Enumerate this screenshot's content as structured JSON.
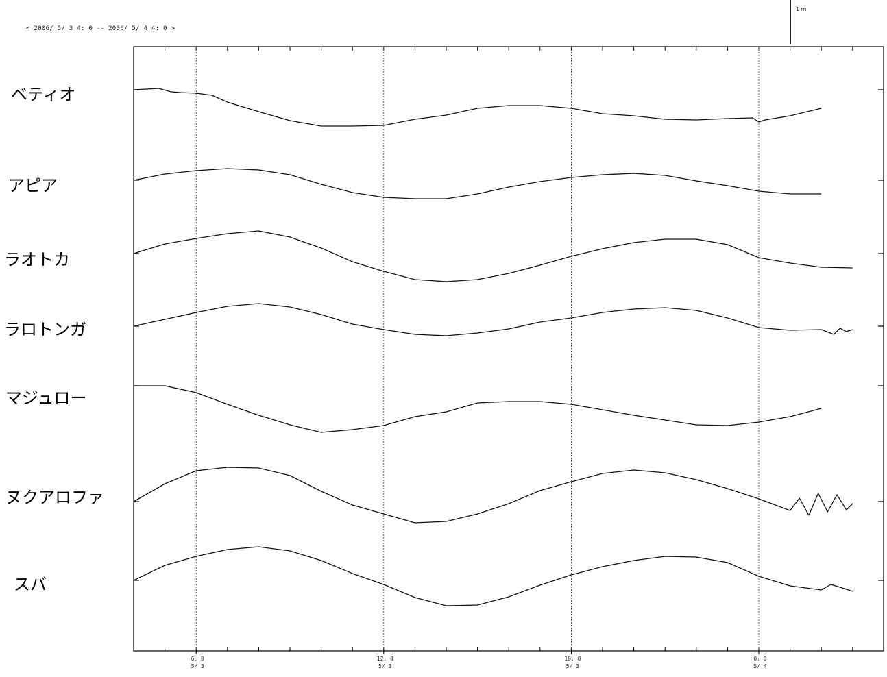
{
  "header": {
    "time_range": "< 2006/ 5/ 3  4: 0 -- 2006/ 5/ 4  4: 0 >",
    "scale_label": "1 m"
  },
  "chart_data": {
    "type": "line",
    "x_unit": "hours from 2006/5/3 4:00",
    "xlim": [
      0,
      23.2
    ],
    "grid": "vertical dotted at labelled ticks",
    "x_ticks": [
      {
        "x": 2,
        "time": "6: 0",
        "date": "5/ 3"
      },
      {
        "x": 8,
        "time": "12: 0",
        "date": "5/ 3"
      },
      {
        "x": 14,
        "time": "18: 0",
        "date": "5/ 3"
      },
      {
        "x": 20,
        "time": "0: 0",
        "date": "5/ 4"
      }
    ],
    "series": [
      {
        "name": "ベティオ",
        "baseline": 0.0,
        "x": [
          0,
          0.8,
          1.2,
          1.5,
          2,
          2.5,
          3,
          4,
          5,
          6,
          7,
          8,
          9,
          10,
          11,
          12,
          13,
          14,
          15,
          16,
          17,
          18,
          19,
          19.8,
          20,
          20.2,
          21,
          22
        ],
        "y": [
          0,
          0.02,
          -0.03,
          -0.04,
          -0.05,
          -0.08,
          -0.18,
          -0.32,
          -0.45,
          -0.53,
          -0.53,
          -0.52,
          -0.43,
          -0.37,
          -0.27,
          -0.23,
          -0.23,
          -0.27,
          -0.35,
          -0.38,
          -0.43,
          -0.44,
          -0.42,
          -0.41,
          -0.47,
          -0.44,
          -0.38,
          -0.27
        ]
      },
      {
        "name": "アピア",
        "baseline": 0.0,
        "x": [
          0,
          1,
          2,
          3,
          4,
          5,
          6,
          7,
          8,
          9,
          10,
          11,
          12,
          13,
          14,
          15,
          16,
          17,
          18,
          19,
          20,
          21,
          22
        ],
        "y": [
          0,
          0.09,
          0.14,
          0.17,
          0.15,
          0.08,
          -0.06,
          -0.18,
          -0.25,
          -0.27,
          -0.27,
          -0.2,
          -0.1,
          -0.02,
          0.04,
          0.08,
          0.1,
          0.07,
          -0.01,
          -0.08,
          -0.16,
          -0.2,
          -0.2
        ]
      },
      {
        "name": "ラオトカ",
        "baseline": 0.0,
        "x": [
          0,
          1,
          2,
          3,
          4,
          5,
          6,
          7,
          8,
          9,
          10,
          11,
          12,
          13,
          14,
          15,
          16,
          17,
          18,
          19,
          20,
          21,
          22,
          23
        ],
        "y": [
          0,
          0.14,
          0.22,
          0.29,
          0.33,
          0.24,
          0.08,
          -0.12,
          -0.26,
          -0.38,
          -0.41,
          -0.38,
          -0.29,
          -0.17,
          -0.04,
          0.07,
          0.16,
          0.21,
          0.21,
          0.13,
          -0.06,
          -0.14,
          -0.2,
          -0.21
        ]
      },
      {
        "name": "ラロトンガ",
        "baseline": 0.0,
        "x": [
          0,
          1,
          2,
          3,
          4,
          5,
          6,
          7,
          8,
          9,
          10,
          11,
          12,
          13,
          14,
          15,
          16,
          17,
          18,
          19,
          20,
          21,
          22,
          22.4,
          22.6,
          22.8,
          23
        ],
        "y": [
          0,
          0.1,
          0.2,
          0.29,
          0.33,
          0.28,
          0.17,
          0.03,
          -0.05,
          -0.12,
          -0.14,
          -0.1,
          -0.04,
          0.06,
          0.12,
          0.2,
          0.25,
          0.27,
          0.23,
          0.12,
          -0.02,
          -0.06,
          -0.05,
          -0.12,
          -0.03,
          -0.08,
          -0.05
        ]
      },
      {
        "name": "マジュロー",
        "baseline": 0.0,
        "x": [
          0,
          1,
          2,
          3,
          4,
          5,
          6,
          7,
          8,
          9,
          10,
          11,
          12,
          13,
          14,
          15,
          16,
          17,
          18,
          19,
          20,
          21,
          22
        ],
        "y": [
          0,
          0.0,
          -0.1,
          -0.27,
          -0.43,
          -0.57,
          -0.68,
          -0.64,
          -0.58,
          -0.45,
          -0.38,
          -0.25,
          -0.23,
          -0.23,
          -0.27,
          -0.35,
          -0.43,
          -0.5,
          -0.57,
          -0.58,
          -0.53,
          -0.45,
          -0.33
        ]
      },
      {
        "name": "ヌクアロファ",
        "baseline": 0.0,
        "x": [
          0,
          1,
          2,
          3,
          4,
          5,
          6,
          7,
          8,
          9,
          10,
          11,
          12,
          13,
          14,
          15,
          16,
          17,
          18,
          19,
          20,
          21,
          21.3,
          21.6,
          21.9,
          22.2,
          22.5,
          22.8,
          23
        ],
        "y": [
          0,
          0.26,
          0.45,
          0.5,
          0.49,
          0.38,
          0.15,
          -0.05,
          -0.18,
          -0.31,
          -0.29,
          -0.18,
          -0.03,
          0.16,
          0.29,
          0.41,
          0.46,
          0.42,
          0.32,
          0.19,
          0.04,
          -0.13,
          0.05,
          -0.2,
          0.12,
          -0.15,
          0.1,
          -0.12,
          -0.03
        ]
      },
      {
        "name": "スバ",
        "baseline": 0.0,
        "x": [
          0,
          1,
          2,
          3,
          4,
          5,
          6,
          7,
          8,
          9,
          10,
          11,
          12,
          13,
          14,
          15,
          16,
          17,
          18,
          19,
          20,
          21,
          22,
          22.3,
          22.6,
          23
        ],
        "y": [
          0,
          0.22,
          0.35,
          0.45,
          0.49,
          0.43,
          0.29,
          0.1,
          -0.06,
          -0.25,
          -0.37,
          -0.36,
          -0.24,
          -0.07,
          0.08,
          0.2,
          0.29,
          0.35,
          0.34,
          0.26,
          0.06,
          -0.08,
          -0.14,
          -0.06,
          -0.1,
          -0.16
        ]
      }
    ]
  }
}
